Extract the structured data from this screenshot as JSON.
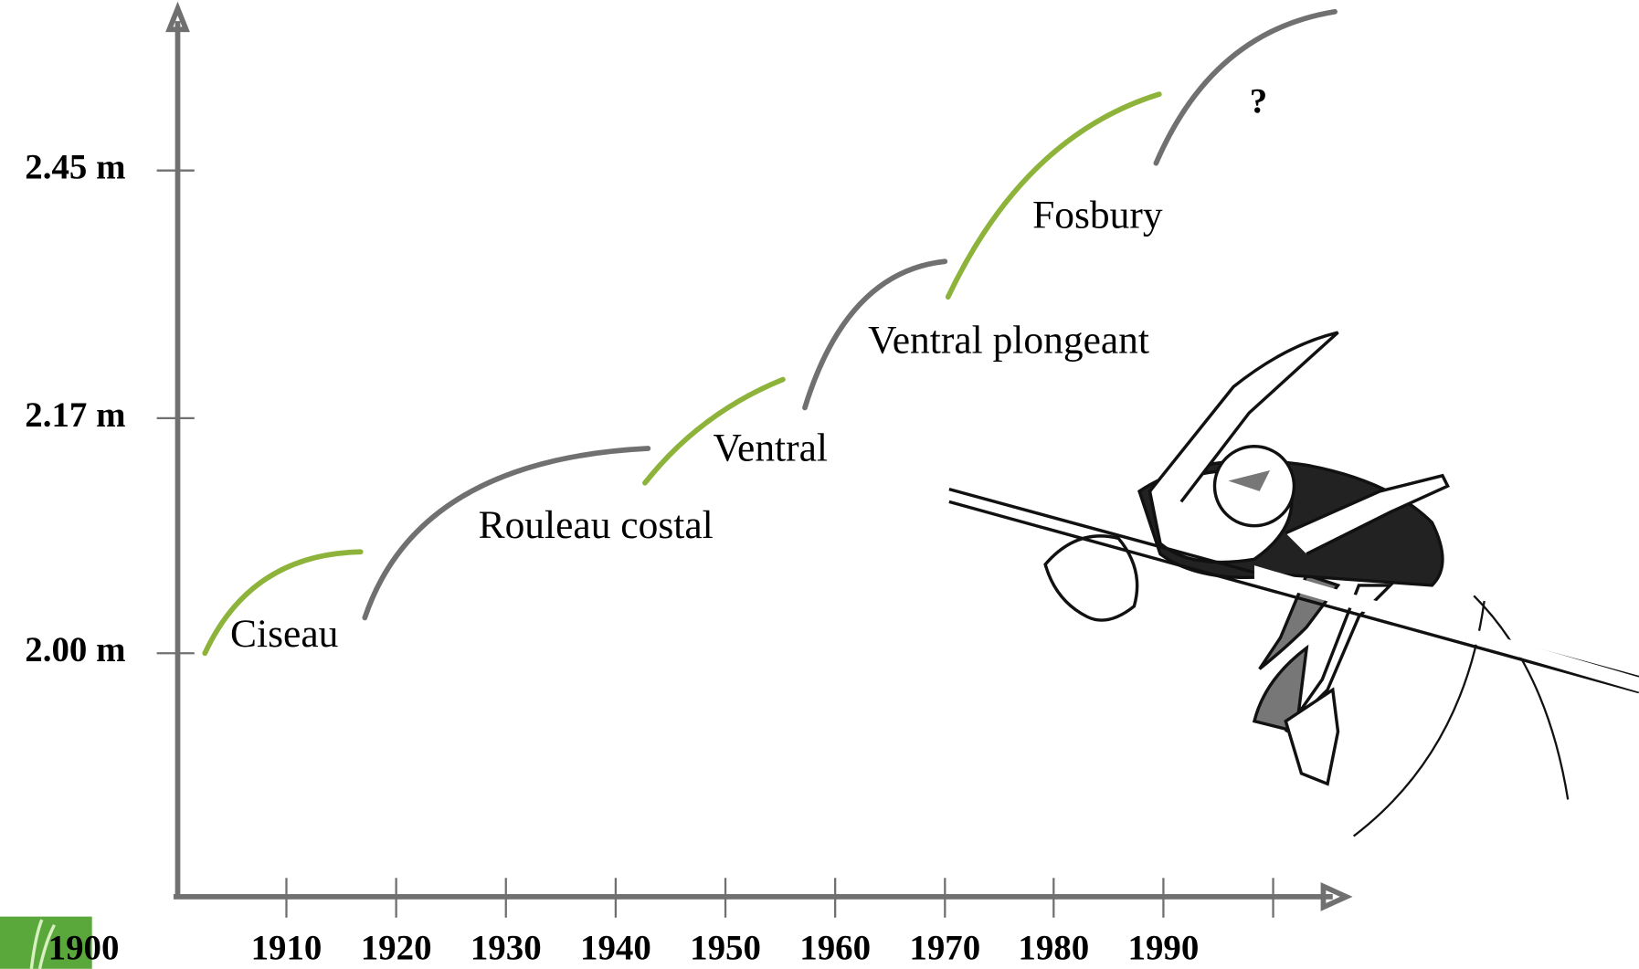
{
  "y_axis": {
    "ticks": [
      "2.45 m",
      "2.17 m",
      "2.00 m"
    ]
  },
  "x_axis": {
    "ticks": [
      "1900",
      "1910",
      "1920",
      "1930",
      "1940",
      "1950",
      "1960",
      "1970",
      "1980",
      "1990"
    ]
  },
  "techniques": [
    "Ciseau",
    "Rouleau costal",
    "Ventral",
    "Ventral plongeant",
    "Fosbury",
    "?"
  ]
}
